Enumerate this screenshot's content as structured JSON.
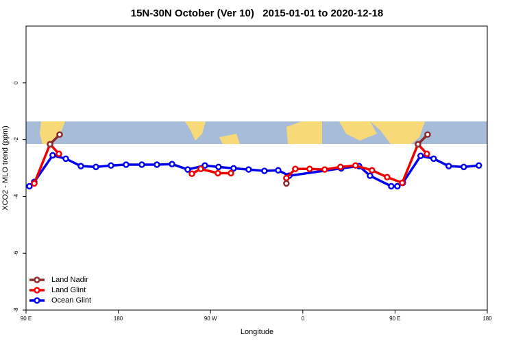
{
  "chart_data": {
    "type": "line",
    "title": "15N-30N October (Ver 10)   2015-01-01 to 2020-12-18",
    "x_label": "Longitude",
    "y_label": "XCO2 - MLO trend (ppm)",
    "xlim": [
      90,
      540
    ],
    "ylim": [
      -8,
      2
    ],
    "xticks": [
      {
        "value": 90,
        "label": "90 E"
      },
      180,
      {
        "value": 270,
        "label": "90 W"
      },
      {
        "value": 360,
        "label": "0"
      },
      {
        "value": 450,
        "label": "90 E"
      },
      {
        "value": 540,
        "label": "180"
      }
    ],
    "yticks": [
      0,
      -2,
      -4,
      -6,
      -8
    ],
    "legend": "bottom-left",
    "series": [
      {
        "name": "Land Nadir",
        "color": "#8b2a2a",
        "x": [
          113.4,
          122.8,
          null,
          344,
          null,
          472.4,
          481.8
        ],
        "values": [
          -2.16,
          -1.82,
          null,
          -3.54,
          null,
          -2.16,
          -1.82
        ]
      },
      {
        "name": "Land Glint",
        "color": "#ee0000",
        "x": [
          98,
          113.4,
          122.1,
          null,
          251.8,
          260.5,
          277.2,
          289.9,
          null,
          344,
          352.7,
          366.7,
          381.4,
          396.8,
          411.5,
          427.6,
          442.3,
          457,
          472.4,
          481.1
        ],
        "values": [
          -3.54,
          -2.16,
          -2.5,
          null,
          -3.2,
          -3.03,
          -3.18,
          -3.18,
          null,
          -3.35,
          -3.03,
          -3.03,
          -3.05,
          -2.96,
          -2.91,
          -3.08,
          -3.32,
          -3.52,
          -2.16,
          -2.5
        ]
      },
      {
        "name": "Ocean Glint",
        "color": "#0000ee",
        "x": [
          93.3,
          98,
          116,
          128.8,
          143.5,
          158.2,
          172.9,
          187.6,
          203,
          217.7,
          232.4,
          247.8,
          264.5,
          277.8,
          292.5,
          307.2,
          322.6,
          336,
          346.7,
          397.5,
          414.9,
          425.6,
          446.3,
          452.3,
          457.6,
          475,
          487.7,
          502.4,
          517.1,
          531.8
        ],
        "values": [
          -3.64,
          -3.49,
          -2.55,
          -2.67,
          -2.93,
          -2.96,
          -2.91,
          -2.88,
          -2.88,
          -2.88,
          -2.86,
          -3.05,
          -2.91,
          -2.96,
          -3.01,
          -3.05,
          -3.1,
          -3.08,
          -3.27,
          -3.01,
          -2.93,
          -3.27,
          -3.64,
          -3.64,
          -3.52,
          -2.57,
          -2.67,
          -2.93,
          -2.96,
          -2.91
        ]
      }
    ]
  }
}
